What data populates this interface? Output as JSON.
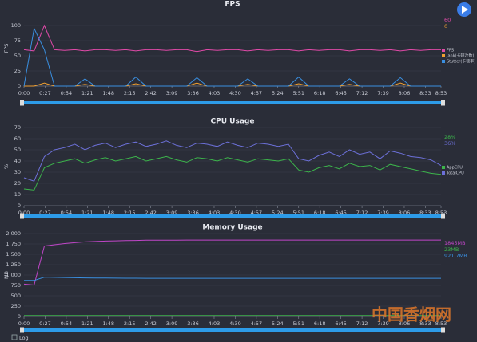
{
  "chart_data": [
    {
      "type": "line",
      "title": "FPS",
      "y_label": "FPS",
      "x": [
        0,
        13,
        26,
        39,
        52,
        65,
        78,
        91,
        104,
        117,
        130,
        143,
        156,
        169,
        182,
        195,
        208,
        221,
        234,
        247,
        260,
        273,
        286,
        299,
        312,
        325,
        338,
        351,
        364,
        377,
        390,
        403,
        416,
        429,
        442,
        455,
        468,
        481,
        494,
        507,
        520,
        533
      ],
      "xlim": [
        0,
        533
      ],
      "xticks": [
        {
          "value": 0,
          "label": "0:00"
        },
        {
          "value": 27,
          "label": "0:27"
        },
        {
          "value": 54,
          "label": "0:54"
        },
        {
          "value": 81,
          "label": "1:21"
        },
        {
          "value": 108,
          "label": "1:48"
        },
        {
          "value": 135,
          "label": "2:15"
        },
        {
          "value": 162,
          "label": "2:42"
        },
        {
          "value": 189,
          "label": "3:09"
        },
        {
          "value": 216,
          "label": "3:36"
        },
        {
          "value": 243,
          "label": "4:03"
        },
        {
          "value": 270,
          "label": "4:30"
        },
        {
          "value": 297,
          "label": "4:57"
        },
        {
          "value": 324,
          "label": "5:24"
        },
        {
          "value": 351,
          "label": "5:51"
        },
        {
          "value": 378,
          "label": "6:18"
        },
        {
          "value": 405,
          "label": "6:45"
        },
        {
          "value": 432,
          "label": "7:12"
        },
        {
          "value": 459,
          "label": "7:39"
        },
        {
          "value": 486,
          "label": "8:06"
        },
        {
          "value": 513,
          "label": "8:33"
        },
        {
          "value": 533,
          "label": "8:53"
        }
      ],
      "ylim": [
        0,
        125
      ],
      "yticks": [
        0,
        25,
        50,
        75,
        100
      ],
      "grid": true,
      "series": [
        {
          "name": "FPS",
          "color": "#e04aa8",
          "last_label": "60",
          "values": [
            60,
            58,
            100,
            60,
            59,
            60,
            58,
            60,
            60,
            59,
            60,
            58,
            60,
            60,
            59,
            60,
            60,
            57,
            60,
            59,
            60,
            60,
            58,
            60,
            59,
            60,
            60,
            58,
            60,
            59,
            60,
            60,
            58,
            60,
            60,
            59,
            60,
            58,
            60,
            59,
            60,
            60
          ]
        },
        {
          "name": "Jank(卡顿次数)",
          "color": "#f0a030",
          "last_label": "0",
          "values": [
            0,
            0,
            5,
            0,
            0,
            0,
            3,
            0,
            0,
            0,
            0,
            4,
            0,
            0,
            0,
            0,
            0,
            5,
            0,
            0,
            0,
            0,
            3,
            0,
            0,
            0,
            0,
            4,
            0,
            0,
            0,
            0,
            3,
            0,
            0,
            0,
            0,
            5,
            0,
            0,
            0,
            0
          ]
        },
        {
          "name": "Stutter(卡顿率)",
          "color": "#3a8fe0",
          "values": [
            0,
            95,
            60,
            0,
            0,
            0,
            12,
            0,
            0,
            0,
            0,
            15,
            0,
            0,
            0,
            0,
            0,
            14,
            0,
            0,
            0,
            0,
            12,
            0,
            0,
            0,
            0,
            15,
            0,
            0,
            0,
            0,
            12,
            0,
            0,
            0,
            0,
            14,
            0,
            0,
            0,
            0
          ]
        }
      ]
    },
    {
      "type": "line",
      "title": "CPU Usage",
      "y_label": "%",
      "x": [
        0,
        13,
        26,
        39,
        52,
        65,
        78,
        91,
        104,
        117,
        130,
        143,
        156,
        169,
        182,
        195,
        208,
        221,
        234,
        247,
        260,
        273,
        286,
        299,
        312,
        325,
        338,
        351,
        364,
        377,
        390,
        403,
        416,
        429,
        442,
        455,
        468,
        481,
        494,
        507,
        520,
        533
      ],
      "xlim": [
        0,
        533
      ],
      "xticks": [
        {
          "value": 0,
          "label": "0:00"
        },
        {
          "value": 27,
          "label": "0:27"
        },
        {
          "value": 54,
          "label": "0:54"
        },
        {
          "value": 81,
          "label": "1:21"
        },
        {
          "value": 108,
          "label": "1:48"
        },
        {
          "value": 135,
          "label": "2:15"
        },
        {
          "value": 162,
          "label": "2:42"
        },
        {
          "value": 189,
          "label": "3:09"
        },
        {
          "value": 216,
          "label": "3:36"
        },
        {
          "value": 243,
          "label": "4:03"
        },
        {
          "value": 270,
          "label": "4:30"
        },
        {
          "value": 297,
          "label": "4:57"
        },
        {
          "value": 324,
          "label": "5:24"
        },
        {
          "value": 351,
          "label": "5:51"
        },
        {
          "value": 378,
          "label": "6:18"
        },
        {
          "value": 405,
          "label": "6:45"
        },
        {
          "value": 432,
          "label": "7:12"
        },
        {
          "value": 459,
          "label": "7:39"
        },
        {
          "value": 486,
          "label": "8:06"
        },
        {
          "value": 513,
          "label": "8:33"
        },
        {
          "value": 533,
          "label": "8:53"
        }
      ],
      "ylim": [
        0,
        70
      ],
      "yticks": [
        0,
        10,
        20,
        30,
        40,
        50,
        60,
        70
      ],
      "grid": true,
      "series": [
        {
          "name": "AppCPU",
          "color": "#3cb44b",
          "last_label": "28%",
          "values": [
            15,
            14,
            34,
            38,
            40,
            42,
            38,
            41,
            43,
            40,
            42,
            44,
            40,
            42,
            44,
            41,
            39,
            43,
            42,
            40,
            43,
            41,
            39,
            42,
            41,
            40,
            42,
            32,
            30,
            34,
            36,
            33,
            38,
            35,
            36,
            32,
            37,
            35,
            33,
            31,
            29,
            28
          ]
        },
        {
          "name": "TotalCPU",
          "color": "#6c70d8",
          "last_label": "36%",
          "values": [
            25,
            22,
            44,
            50,
            52,
            55,
            50,
            54,
            56,
            52,
            55,
            57,
            53,
            55,
            58,
            54,
            52,
            56,
            55,
            53,
            57,
            54,
            52,
            56,
            55,
            53,
            55,
            42,
            40,
            45,
            48,
            44,
            50,
            46,
            48,
            42,
            49,
            47,
            44,
            43,
            41,
            36
          ]
        }
      ]
    },
    {
      "type": "line",
      "title": "Memory Usage",
      "y_label": "MB",
      "x": [
        0,
        13,
        26,
        39,
        52,
        65,
        78,
        91,
        104,
        117,
        130,
        143,
        156,
        169,
        182,
        195,
        208,
        221,
        234,
        247,
        260,
        273,
        286,
        299,
        312,
        325,
        338,
        351,
        364,
        377,
        390,
        403,
        416,
        429,
        442,
        455,
        468,
        481,
        494,
        507,
        520,
        533
      ],
      "xlim": [
        0,
        533
      ],
      "xticks": [
        {
          "value": 0,
          "label": "0:00"
        },
        {
          "value": 27,
          "label": "0:27"
        },
        {
          "value": 54,
          "label": "0:54"
        },
        {
          "value": 81,
          "label": "1:21"
        },
        {
          "value": 108,
          "label": "1:48"
        },
        {
          "value": 135,
          "label": "2:15"
        },
        {
          "value": 162,
          "label": "2:42"
        },
        {
          "value": 189,
          "label": "3:09"
        },
        {
          "value": 216,
          "label": "3:36"
        },
        {
          "value": 243,
          "label": "4:03"
        },
        {
          "value": 270,
          "label": "4:30"
        },
        {
          "value": 297,
          "label": "4:57"
        },
        {
          "value": 324,
          "label": "5:24"
        },
        {
          "value": 351,
          "label": "5:51"
        },
        {
          "value": 378,
          "label": "6:18"
        },
        {
          "value": 405,
          "label": "6:45"
        },
        {
          "value": 432,
          "label": "7:12"
        },
        {
          "value": 459,
          "label": "7:39"
        },
        {
          "value": 486,
          "label": "8:06"
        },
        {
          "value": 513,
          "label": "8:33"
        },
        {
          "value": 533,
          "label": "8:53"
        }
      ],
      "ylim": [
        0,
        2000
      ],
      "yticks": [
        0,
        250,
        500,
        750,
        {
          "value": 1000,
          "label": "1,000"
        },
        {
          "value": 1250,
          "label": "1,250"
        },
        {
          "value": 1500,
          "label": "1,500"
        },
        {
          "value": 1750,
          "label": "1,750"
        },
        {
          "value": 2000,
          "label": "2,000"
        }
      ],
      "grid": true,
      "series": [
        {
          "name": "Total",
          "color": "#c046c8",
          "last_label": "1845MB",
          "values": [
            780,
            760,
            1700,
            1730,
            1760,
            1780,
            1800,
            1810,
            1820,
            1825,
            1830,
            1835,
            1840,
            1840,
            1842,
            1843,
            1844,
            1845,
            1845,
            1845,
            1845,
            1845,
            1845,
            1845,
            1845,
            1845,
            1845,
            1845,
            1845,
            1845,
            1845,
            1845,
            1845,
            1845,
            1845,
            1845,
            1845,
            1845,
            1845,
            1845,
            1845,
            1845
          ]
        },
        {
          "name": "Swap",
          "color": "#3cb44b",
          "last_label": "23MB",
          "values": [
            23,
            23,
            23,
            23,
            23,
            23,
            23,
            23,
            23,
            23,
            23,
            23,
            23,
            23,
            23,
            23,
            23,
            23,
            23,
            23,
            23,
            23,
            23,
            23,
            23,
            23,
            23,
            23,
            23,
            23,
            23,
            23,
            23,
            23,
            23,
            23,
            23,
            23,
            23,
            23,
            23,
            23
          ]
        },
        {
          "name": "Native",
          "color": "#3a8fe0",
          "last_label": "921.7MB",
          "values": [
            870,
            870,
            950,
            945,
            940,
            935,
            930,
            928,
            926,
            925,
            924,
            923,
            922,
            922,
            922,
            922,
            922,
            922,
            922,
            922,
            922,
            922,
            922,
            922,
            922,
            922,
            922,
            922,
            922,
            922,
            922,
            922,
            922,
            922,
            922,
            922,
            922,
            922,
            922,
            922,
            922,
            921.7
          ]
        }
      ]
    }
  ],
  "footer": {
    "checkbox_label": "Log",
    "watermark": "中国香烟网"
  }
}
